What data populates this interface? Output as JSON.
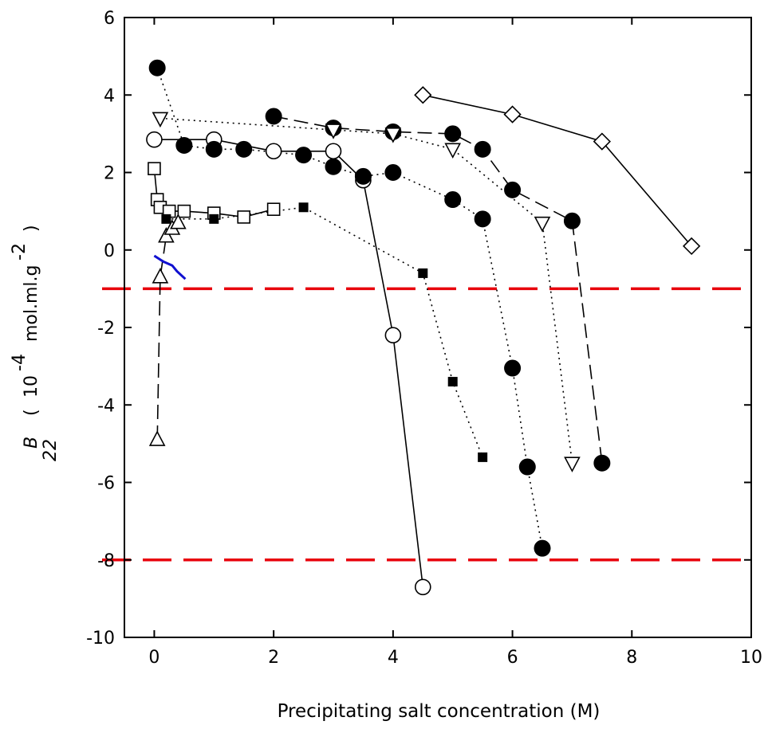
{
  "chart_data": {
    "type": "scatter",
    "xlabel": "Precipitating salt concentration (M)",
    "ylabel_parts": {
      "symbol": "B",
      "subscript": "22",
      "paren_open": "(",
      "base": "10",
      "exp1": "-4",
      "units": "mol.ml.g",
      "exp2": "-2",
      "paren_close": ")"
    },
    "xlim": [
      -0.5,
      10
    ],
    "ylim": [
      -10,
      6
    ],
    "x_ticks": [
      0,
      2,
      4,
      6,
      8,
      10
    ],
    "x_tick_labels": [
      "0",
      "2",
      "4",
      "6",
      "8",
      "10"
    ],
    "y_ticks": [
      -10,
      -8,
      -6,
      -4,
      -2,
      0,
      2,
      4,
      6
    ],
    "y_tick_labels": [
      "-10",
      "-8",
      "-6",
      "-4",
      "-2",
      "0",
      "2",
      "4",
      "6"
    ],
    "grid": false,
    "reference_lines": [
      {
        "y": -1.0,
        "color": "#e8000b",
        "style": "dashed"
      },
      {
        "y": -8.0,
        "color": "#e8000b",
        "style": "dashed"
      }
    ],
    "series": [
      {
        "marker": "diamond-open",
        "line": "solid",
        "x": [
          4.5,
          6.0,
          7.5,
          9.0
        ],
        "y": [
          4.0,
          3.5,
          2.8,
          0.1
        ]
      },
      {
        "marker": "circle-filled",
        "line": "dashed",
        "x": [
          2.0,
          3.0,
          4.0,
          5.0,
          5.5,
          6.0,
          7.0,
          7.5
        ],
        "y": [
          3.45,
          3.15,
          3.05,
          3.0,
          2.6,
          1.55,
          0.75,
          -5.5
        ]
      },
      {
        "marker": "triangle-down-open",
        "line": "dotted",
        "x": [
          0.1,
          3.0,
          4.0,
          5.0,
          6.5,
          7.0
        ],
        "y": [
          3.4,
          3.1,
          3.0,
          2.6,
          0.7,
          -5.5
        ]
      },
      {
        "marker": "circle-open",
        "line": "solid",
        "x": [
          0.0,
          1.0,
          2.0,
          3.0,
          3.5,
          4.0,
          4.5
        ],
        "y": [
          2.85,
          2.85,
          2.55,
          2.55,
          1.8,
          -2.2,
          -8.7
        ]
      },
      {
        "marker": "circle-filled",
        "line": "dotted",
        "x": [
          0.05,
          0.5,
          1.0,
          1.5,
          2.5,
          3.0,
          3.5,
          4.0,
          5.0,
          5.5,
          6.0,
          6.25,
          6.5
        ],
        "y": [
          4.7,
          2.7,
          2.6,
          2.6,
          2.45,
          2.15,
          1.9,
          2.0,
          1.3,
          0.8,
          -3.05,
          -5.6,
          -7.7
        ]
      },
      {
        "marker": "square-open",
        "line": "solid",
        "x": [
          0.0,
          0.05,
          0.1,
          0.25,
          0.5,
          1.0,
          1.5,
          2.0
        ],
        "y": [
          2.1,
          1.3,
          1.1,
          1.0,
          1.0,
          0.95,
          0.85,
          1.05
        ]
      },
      {
        "marker": "square-filled",
        "line": "dotted",
        "x": [
          0.2,
          1.0,
          2.5,
          4.5,
          5.0,
          5.5
        ],
        "y": [
          0.8,
          0.8,
          1.1,
          -0.6,
          -3.4,
          -5.35
        ]
      },
      {
        "marker": "triangle-up-open",
        "line": "dashed",
        "x": [
          0.05,
          0.1,
          0.2,
          0.3,
          0.4
        ],
        "y": [
          -4.9,
          -0.7,
          0.35,
          0.55,
          0.7
        ]
      },
      {
        "marker": "none",
        "line": "solid",
        "color": "#1010d0",
        "x": [
          0.0,
          0.15,
          0.3,
          0.38,
          0.52
        ],
        "y": [
          -0.15,
          -0.3,
          -0.4,
          -0.55,
          -0.75
        ]
      }
    ]
  }
}
